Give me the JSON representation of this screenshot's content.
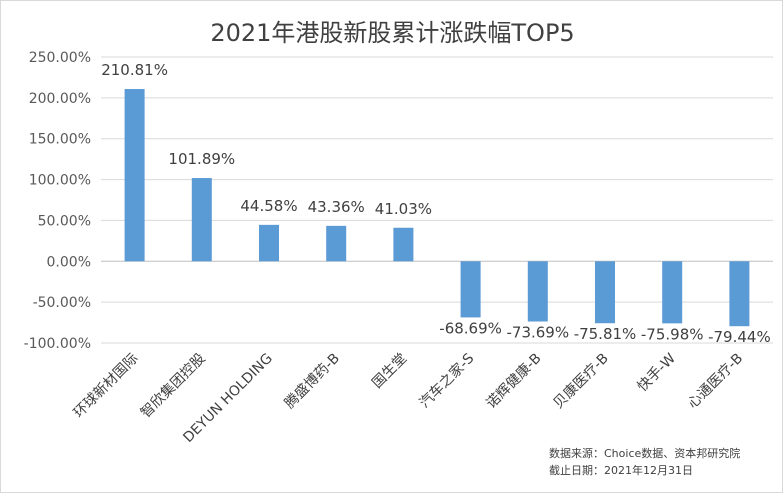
{
  "chart_data": {
    "type": "bar",
    "title": "2021年港股新股累计涨跌幅TOP5",
    "categories": [
      "环球新材国际",
      "智欣集团控股",
      "DEYUN HOLDING",
      "腾盛博药-B",
      "国生堂",
      "汽车之家-S",
      "诺辉健康-B",
      "贝康医疗-B",
      "快手-W",
      "心通医疗-B"
    ],
    "values": [
      210.81,
      101.89,
      44.58,
      43.36,
      41.03,
      -68.69,
      -73.69,
      -75.81,
      -75.98,
      -79.44
    ],
    "data_labels": [
      "210.81%",
      "101.89%",
      "44.58%",
      "43.36%",
      "41.03%",
      "-68.69%",
      "-73.69%",
      "-75.81%",
      "-75.98%",
      "-79.44%"
    ],
    "ylim": [
      -100,
      250
    ],
    "yticks": [
      250,
      200,
      150,
      100,
      50,
      0,
      -50,
      -100
    ],
    "ytick_labels": [
      "250.00%",
      "200.00%",
      "150.00%",
      "100.00%",
      "50.00%",
      "0.00%",
      "-50.00%",
      "-100.00%"
    ],
    "grid": true,
    "bar_color": "#5b9bd5"
  },
  "source_note": {
    "line1": "数据来源：Choice数据、资本邦研究院",
    "line2": "截止日期：2021年12月31日"
  }
}
